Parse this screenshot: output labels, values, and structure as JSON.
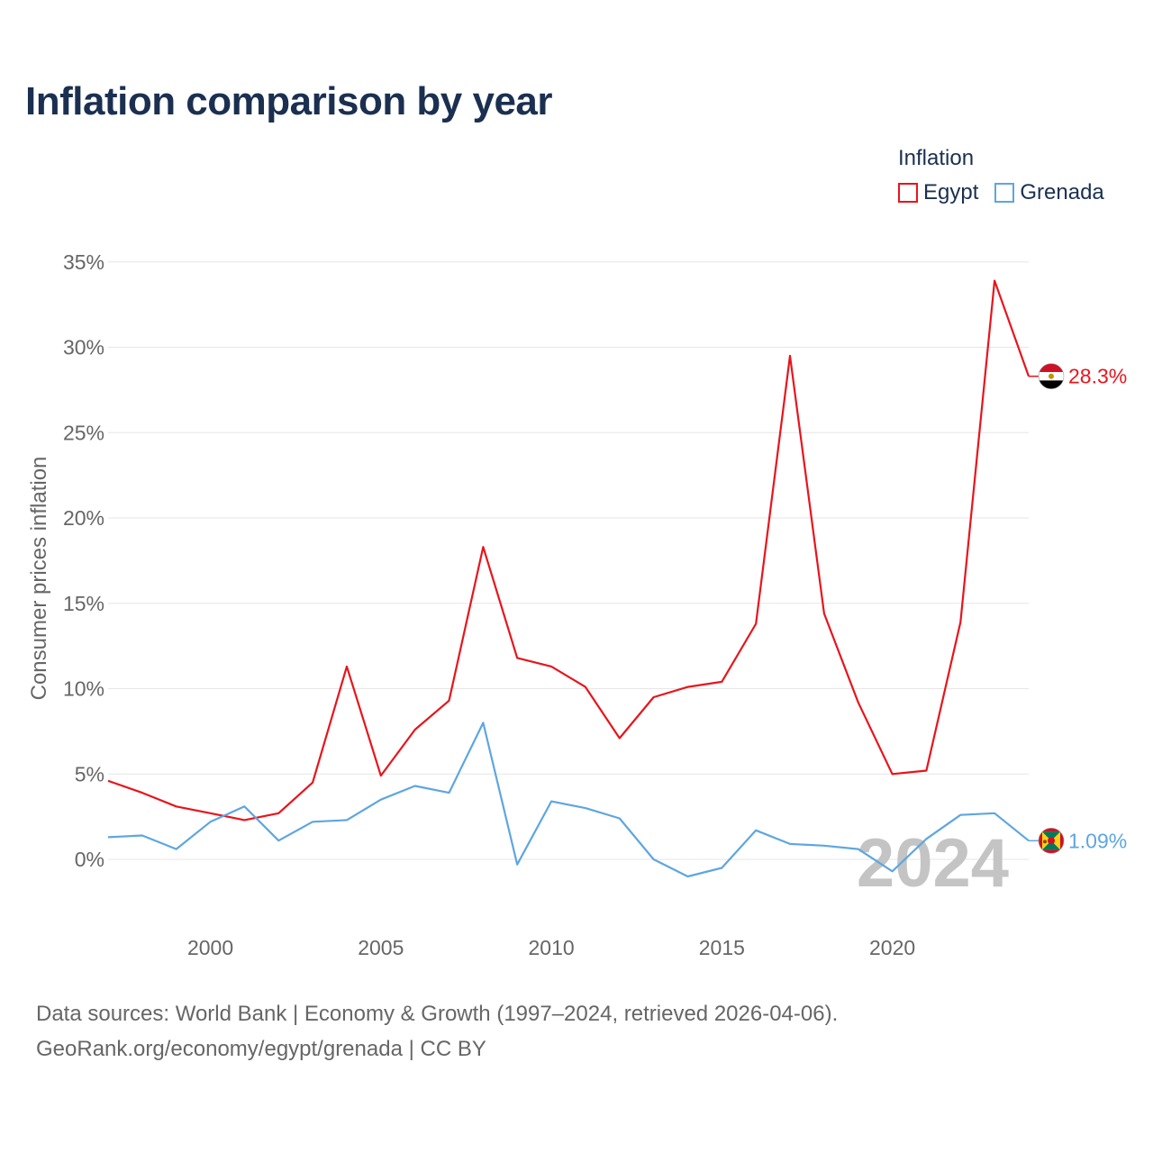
{
  "page": {
    "title": "Inflation comparison by year",
    "source_line1": "Data sources: World Bank | Economy & Growth (1997–2024, retrieved 2026-04-06).",
    "source_line2": "GeoRank.org/economy/egypt/grenada | CC BY"
  },
  "legend": {
    "title": "Inflation",
    "items": [
      {
        "label": "Egypt",
        "color": "#e8141c"
      },
      {
        "label": "Grenada",
        "color": "#5ea6e0"
      }
    ]
  },
  "chart_data": {
    "type": "line",
    "title": "Inflation comparison by year",
    "xlabel": "",
    "ylabel": "Consumer prices inflation",
    "x": [
      1997,
      1998,
      1999,
      2000,
      2001,
      2002,
      2003,
      2004,
      2005,
      2006,
      2007,
      2008,
      2009,
      2010,
      2011,
      2012,
      2013,
      2014,
      2015,
      2016,
      2017,
      2018,
      2019,
      2020,
      2021,
      2022,
      2023,
      2024
    ],
    "xlim": [
      1997,
      2024
    ],
    "ylim": [
      -3,
      35
    ],
    "x_ticks": [
      2000,
      2005,
      2010,
      2015,
      2020
    ],
    "y_ticks": [
      0,
      5,
      10,
      15,
      20,
      25,
      30,
      35
    ],
    "y_tick_labels": [
      "0%",
      "5%",
      "10%",
      "15%",
      "20%",
      "25%",
      "30%",
      "35%"
    ],
    "grid": true,
    "year_watermark": "2024",
    "series": [
      {
        "name": "Egypt",
        "color": "#e8141c",
        "end_label": "28.3%",
        "flag": "egypt-flag",
        "values": [
          4.6,
          3.9,
          3.1,
          2.7,
          2.3,
          2.7,
          4.5,
          11.3,
          4.9,
          7.6,
          9.3,
          18.3,
          11.8,
          11.3,
          10.1,
          7.1,
          9.5,
          10.1,
          10.4,
          13.8,
          29.5,
          14.4,
          9.2,
          5.0,
          5.2,
          13.9,
          33.9,
          28.3
        ]
      },
      {
        "name": "Grenada",
        "color": "#5ea6e0",
        "end_label": "1.09%",
        "flag": "grenada-flag",
        "values": [
          1.3,
          1.4,
          0.6,
          2.2,
          3.1,
          1.1,
          2.2,
          2.3,
          3.5,
          4.3,
          3.9,
          8.0,
          -0.3,
          3.4,
          3.0,
          2.4,
          0.0,
          -1.0,
          -0.5,
          1.7,
          0.9,
          0.8,
          0.6,
          -0.7,
          1.2,
          2.6,
          2.7,
          1.09
        ]
      }
    ]
  }
}
